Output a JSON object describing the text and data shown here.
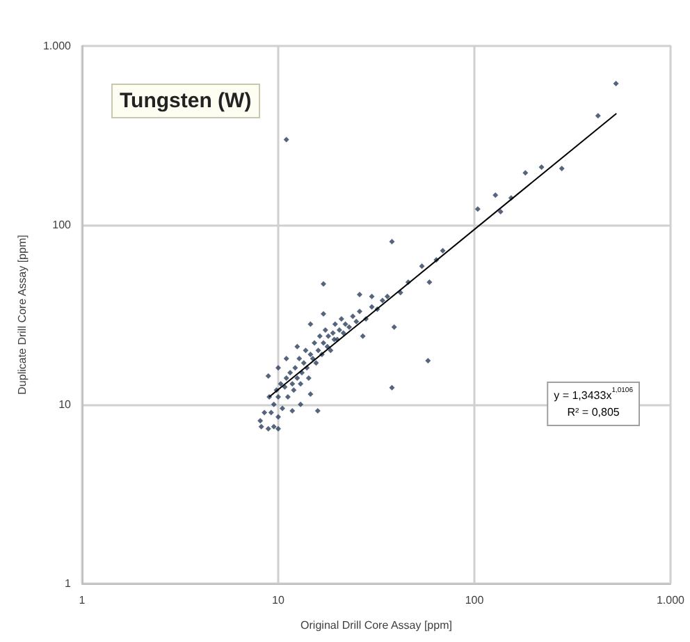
{
  "chart_data": {
    "type": "scatter",
    "title": "Tungsten (W)",
    "xlabel": "Original Drill Core Assay [ppm]",
    "ylabel": "Duplicate Drill Core Assay [ppm]",
    "annotations": [
      "y = 1,3433x$^{1,0106}$",
      "R² = 0,805"
    ],
    "log": "xy",
    "grid": true,
    "marker": "diamond",
    "xlim": [
      1,
      1000
    ],
    "xticks": [
      1,
      10,
      100,
      {
        "value": 1000,
        "label": "1.000"
      }
    ],
    "ylim": [
      1,
      1000
    ],
    "yticks": [
      1,
      10,
      100,
      {
        "value": 1000,
        "label": "1.000"
      }
    ],
    "series": [
      {
        "color": "#2b3f5c",
        "x": [
          11,
          527,
          427,
          279,
          220,
          182,
          128,
          104,
          154,
          136,
          69,
          64,
          54,
          59,
          46,
          42,
          58,
          39,
          38,
          38,
          17,
          26,
          30,
          17,
          14.6,
          27,
          19.3,
          8.9,
          14.6,
          15.9,
          8.1,
          8.9,
          10,
          11.8,
          9.5,
          9.8,
          10,
          10.3,
          10.5,
          10.8,
          11,
          11.2,
          11.5,
          11.8,
          12,
          12.2,
          12.5,
          12.8,
          13,
          13.2,
          13.5,
          13.8,
          14,
          14.3,
          14.6,
          15,
          15.3,
          15.6,
          16,
          16.3,
          16.7,
          17,
          17.4,
          17.8,
          18,
          18.5,
          19,
          19.5,
          20,
          20.5,
          21,
          21.5,
          22,
          23,
          24,
          25,
          26,
          28,
          30,
          32,
          34,
          36,
          9,
          9.2,
          10,
          11,
          12.5,
          13,
          10,
          8.5,
          8.2,
          9.5
        ],
        "values": [
          300,
          617,
          408,
          207,
          211,
          196,
          147,
          123,
          142,
          119,
          72,
          64,
          59,
          48,
          48,
          42,
          17.5,
          27,
          12.4,
          81,
          47,
          41,
          40,
          32,
          28,
          24,
          23,
          14.4,
          11.4,
          9.2,
          8.1,
          7.3,
          7.3,
          9.2,
          10,
          12,
          11,
          13,
          9.5,
          12.5,
          14,
          11,
          15,
          13,
          12,
          16,
          14,
          18,
          13,
          15,
          17,
          20,
          16,
          14,
          19,
          18,
          22,
          17,
          20,
          24,
          19,
          22,
          26,
          21,
          24,
          20,
          25,
          28,
          23,
          26,
          30,
          25,
          28,
          27,
          31,
          29,
          33,
          30,
          35,
          34,
          38,
          40,
          11,
          9,
          16,
          18,
          21,
          10,
          8.5,
          9,
          7.5,
          7.5
        ]
      },
      {
        "type": "line",
        "color": "#000000",
        "marker": "none",
        "x": [
          9,
          530
        ],
        "values": [
          11,
          420
        ]
      }
    ]
  }
}
